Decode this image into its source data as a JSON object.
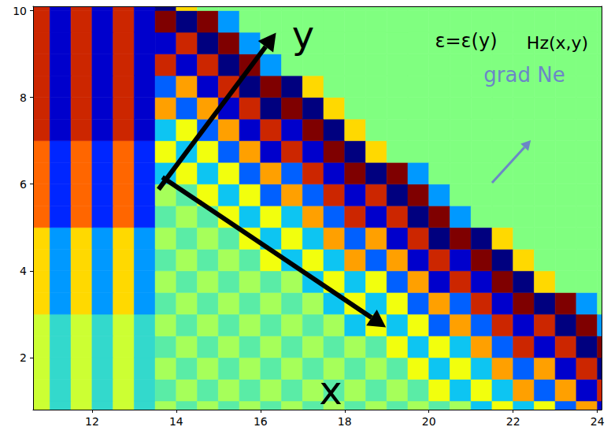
{
  "chart_data": {
    "type": "heatmap",
    "x": [
      10.75,
      11.25,
      11.75,
      12.25,
      12.75,
      13.25,
      13.75,
      14.25,
      14.75,
      15.25,
      15.75,
      16.25,
      16.75,
      17.25,
      17.75,
      18.25,
      18.75,
      19.25,
      19.75,
      20.25,
      20.75,
      21.25,
      21.75,
      22.25,
      22.75,
      23.25,
      23.75,
      24.25
    ],
    "y": [
      0.75,
      1.25,
      1.75,
      2.25,
      2.75,
      3.25,
      3.75,
      4.25,
      4.75,
      5.25,
      5.75,
      6.25,
      6.75,
      7.25,
      7.75,
      8.25,
      8.75,
      9.25,
      9.75,
      10.25
    ],
    "z": [
      [
        0.2,
        -0.2,
        0.2,
        -0.2,
        0.2,
        -0.2,
        0.1,
        -0.1,
        0.1,
        -0.1,
        0.1,
        -0.1,
        0.1,
        -0.1,
        0.1,
        -0.1,
        0.1,
        -0.1,
        0.1,
        -0.1,
        0.1,
        -0.3,
        0.3,
        -0.3,
        0.3,
        -0.5,
        0.5,
        -0.8
      ],
      [
        0.2,
        -0.2,
        0.2,
        -0.2,
        0.2,
        -0.2,
        -0.1,
        0.1,
        -0.1,
        0.1,
        -0.1,
        0.1,
        -0.1,
        0.1,
        -0.1,
        0.1,
        -0.1,
        0.1,
        -0.1,
        0.3,
        -0.3,
        0.3,
        -0.3,
        0.5,
        -0.5,
        0.5,
        -0.8,
        0.8
      ],
      [
        0.2,
        -0.2,
        0.2,
        -0.2,
        0.2,
        -0.2,
        0.1,
        -0.1,
        0.1,
        -0.1,
        0.1,
        -0.1,
        0.1,
        -0.1,
        0.1,
        -0.1,
        0.1,
        -0.1,
        0.3,
        -0.3,
        0.3,
        -0.3,
        0.5,
        -0.5,
        0.5,
        -0.8,
        0.8,
        -1
      ],
      [
        0.2,
        -0.2,
        0.2,
        -0.2,
        0.2,
        -0.2,
        -0.1,
        0.1,
        -0.1,
        0.1,
        -0.1,
        0.1,
        -0.1,
        0.1,
        -0.1,
        0.1,
        -0.1,
        0.3,
        -0.3,
        0.3,
        -0.3,
        0.5,
        -0.5,
        0.8,
        -0.8,
        0.8,
        -1,
        1
      ],
      [
        0.2,
        -0.2,
        0.2,
        -0.2,
        0.2,
        -0.2,
        0.1,
        -0.1,
        0.1,
        -0.1,
        0.1,
        -0.1,
        0.1,
        -0.1,
        0.1,
        -0.3,
        0.3,
        -0.3,
        0.3,
        -0.5,
        0.5,
        -0.5,
        0.8,
        -0.8,
        0.8,
        -1,
        1,
        -0.4
      ],
      [
        0.4,
        -0.4,
        0.4,
        -0.4,
        0.4,
        -0.4,
        -0.1,
        0.1,
        -0.1,
        0.1,
        -0.1,
        0.1,
        -0.1,
        0.1,
        -0.3,
        0.3,
        -0.3,
        0.3,
        -0.5,
        0.5,
        -0.5,
        0.8,
        -0.8,
        1,
        -1,
        1,
        -0.4,
        0
      ],
      [
        0.4,
        -0.4,
        0.4,
        -0.4,
        0.4,
        -0.4,
        0.1,
        -0.1,
        0.1,
        -0.1,
        0.1,
        -0.1,
        0.1,
        -0.3,
        0.3,
        -0.3,
        0.3,
        -0.5,
        0.5,
        -0.8,
        0.8,
        -0.8,
        1,
        -1,
        0.4,
        0,
        0,
        0
      ],
      [
        0.4,
        -0.4,
        0.4,
        -0.4,
        0.4,
        -0.4,
        -0.1,
        0.1,
        -0.1,
        0.1,
        -0.1,
        0.3,
        -0.3,
        0.3,
        -0.3,
        0.5,
        -0.5,
        0.5,
        -0.8,
        0.8,
        -0.8,
        1,
        -1,
        0.4,
        0,
        0,
        0,
        0
      ],
      [
        0.4,
        -0.4,
        0.4,
        -0.4,
        0.4,
        -0.4,
        0.1,
        -0.1,
        0.1,
        -0.1,
        0.3,
        -0.3,
        0.3,
        -0.3,
        0.5,
        -0.5,
        0.5,
        -0.8,
        0.8,
        -1,
        1,
        -1,
        0.4,
        0,
        0,
        0,
        0,
        0
      ],
      [
        0.6,
        -0.6,
        0.6,
        -0.6,
        0.6,
        -0.6,
        -0.1,
        0.1,
        -0.1,
        0.3,
        -0.3,
        0.3,
        -0.3,
        0.5,
        -0.5,
        0.8,
        -0.8,
        0.8,
        -1,
        1,
        -0.4,
        0,
        0,
        0,
        0,
        0,
        0,
        0
      ],
      [
        0.6,
        -0.6,
        0.6,
        -0.6,
        0.6,
        -0.6,
        0.1,
        -0.1,
        0.3,
        -0.3,
        0.3,
        -0.5,
        0.5,
        -0.5,
        0.8,
        -0.8,
        0.8,
        -1,
        1,
        -0.4,
        0,
        0,
        0,
        0,
        0,
        0,
        0,
        0
      ],
      [
        0.6,
        -0.6,
        0.6,
        -0.6,
        0.6,
        -0.6,
        -0.3,
        0.3,
        -0.3,
        0.3,
        -0.5,
        0.5,
        -0.5,
        0.8,
        -0.8,
        1,
        -1,
        1,
        -0.4,
        0,
        0,
        0,
        0,
        0,
        0,
        0,
        0,
        0
      ],
      [
        0.6,
        -0.6,
        0.6,
        -0.6,
        0.6,
        -0.6,
        0.3,
        -0.3,
        0.3,
        -0.5,
        0.5,
        -0.8,
        0.8,
        -0.8,
        1,
        -1,
        0.4,
        0,
        0,
        0,
        0,
        0,
        0,
        0,
        0,
        0,
        0,
        0
      ],
      [
        0.8,
        -0.8,
        0.8,
        -0.8,
        0.8,
        -0.8,
        -0.3,
        0.3,
        -0.5,
        0.5,
        -0.8,
        0.8,
        -0.8,
        1,
        -1,
        0.4,
        0,
        0,
        0,
        0,
        0,
        0,
        0,
        0,
        0,
        0,
        0,
        0
      ],
      [
        0.8,
        -0.8,
        0.8,
        -0.8,
        0.8,
        -0.8,
        0.5,
        -0.5,
        0.5,
        -0.8,
        0.8,
        -1,
        1,
        -1,
        0.4,
        0,
        0,
        0,
        0,
        0,
        0,
        0,
        0,
        0,
        0,
        0,
        0,
        0
      ],
      [
        0.8,
        -0.8,
        0.8,
        -0.8,
        0.8,
        -0.8,
        -0.5,
        0.5,
        -0.8,
        0.8,
        -1,
        1,
        -1,
        0.4,
        0,
        0,
        0,
        0,
        0,
        0,
        0,
        0,
        0,
        0,
        0,
        0,
        0,
        0
      ],
      [
        0.8,
        -0.8,
        0.8,
        -0.8,
        0.8,
        -0.8,
        0.8,
        -0.8,
        0.8,
        -1,
        1,
        -0.4,
        0,
        0,
        0,
        0,
        0,
        0,
        0,
        0,
        0,
        0,
        0,
        0,
        0,
        0,
        0,
        0
      ],
      [
        0.8,
        -0.8,
        0.8,
        -0.8,
        0.8,
        -0.8,
        -0.8,
        0.8,
        -1,
        1,
        -0.4,
        0,
        0,
        0,
        0,
        0,
        0,
        0,
        0,
        0,
        0,
        0,
        0,
        0,
        0,
        0,
        0,
        0
      ],
      [
        0.8,
        -0.8,
        0.8,
        -0.8,
        0.8,
        -0.8,
        1,
        -1,
        1,
        -0.4,
        0,
        0,
        0,
        0,
        0,
        0,
        0,
        0,
        0,
        0,
        0,
        0,
        0,
        0,
        0,
        0,
        0,
        0
      ],
      [
        0.8,
        -0.8,
        0.8,
        -0.8,
        0.8,
        -0.8,
        -1,
        0.4,
        0,
        0,
        0,
        0,
        0,
        0,
        0,
        0,
        0,
        0,
        0,
        0,
        0,
        0,
        0,
        0,
        0,
        0,
        0,
        0
      ]
    ],
    "zlim": [
      -1,
      1
    ],
    "xlim": [
      10.6,
      24.1
    ],
    "ylim": [
      0.8,
      10.1
    ],
    "xticks": [
      12,
      14,
      16,
      18,
      20,
      22,
      24
    ],
    "yticks": [
      2,
      4,
      6,
      8,
      10
    ],
    "grid": false,
    "annotations": [
      "y",
      "x",
      "ε=ε(y)",
      "Hz(x,y)",
      "grad Ne"
    ]
  }
}
